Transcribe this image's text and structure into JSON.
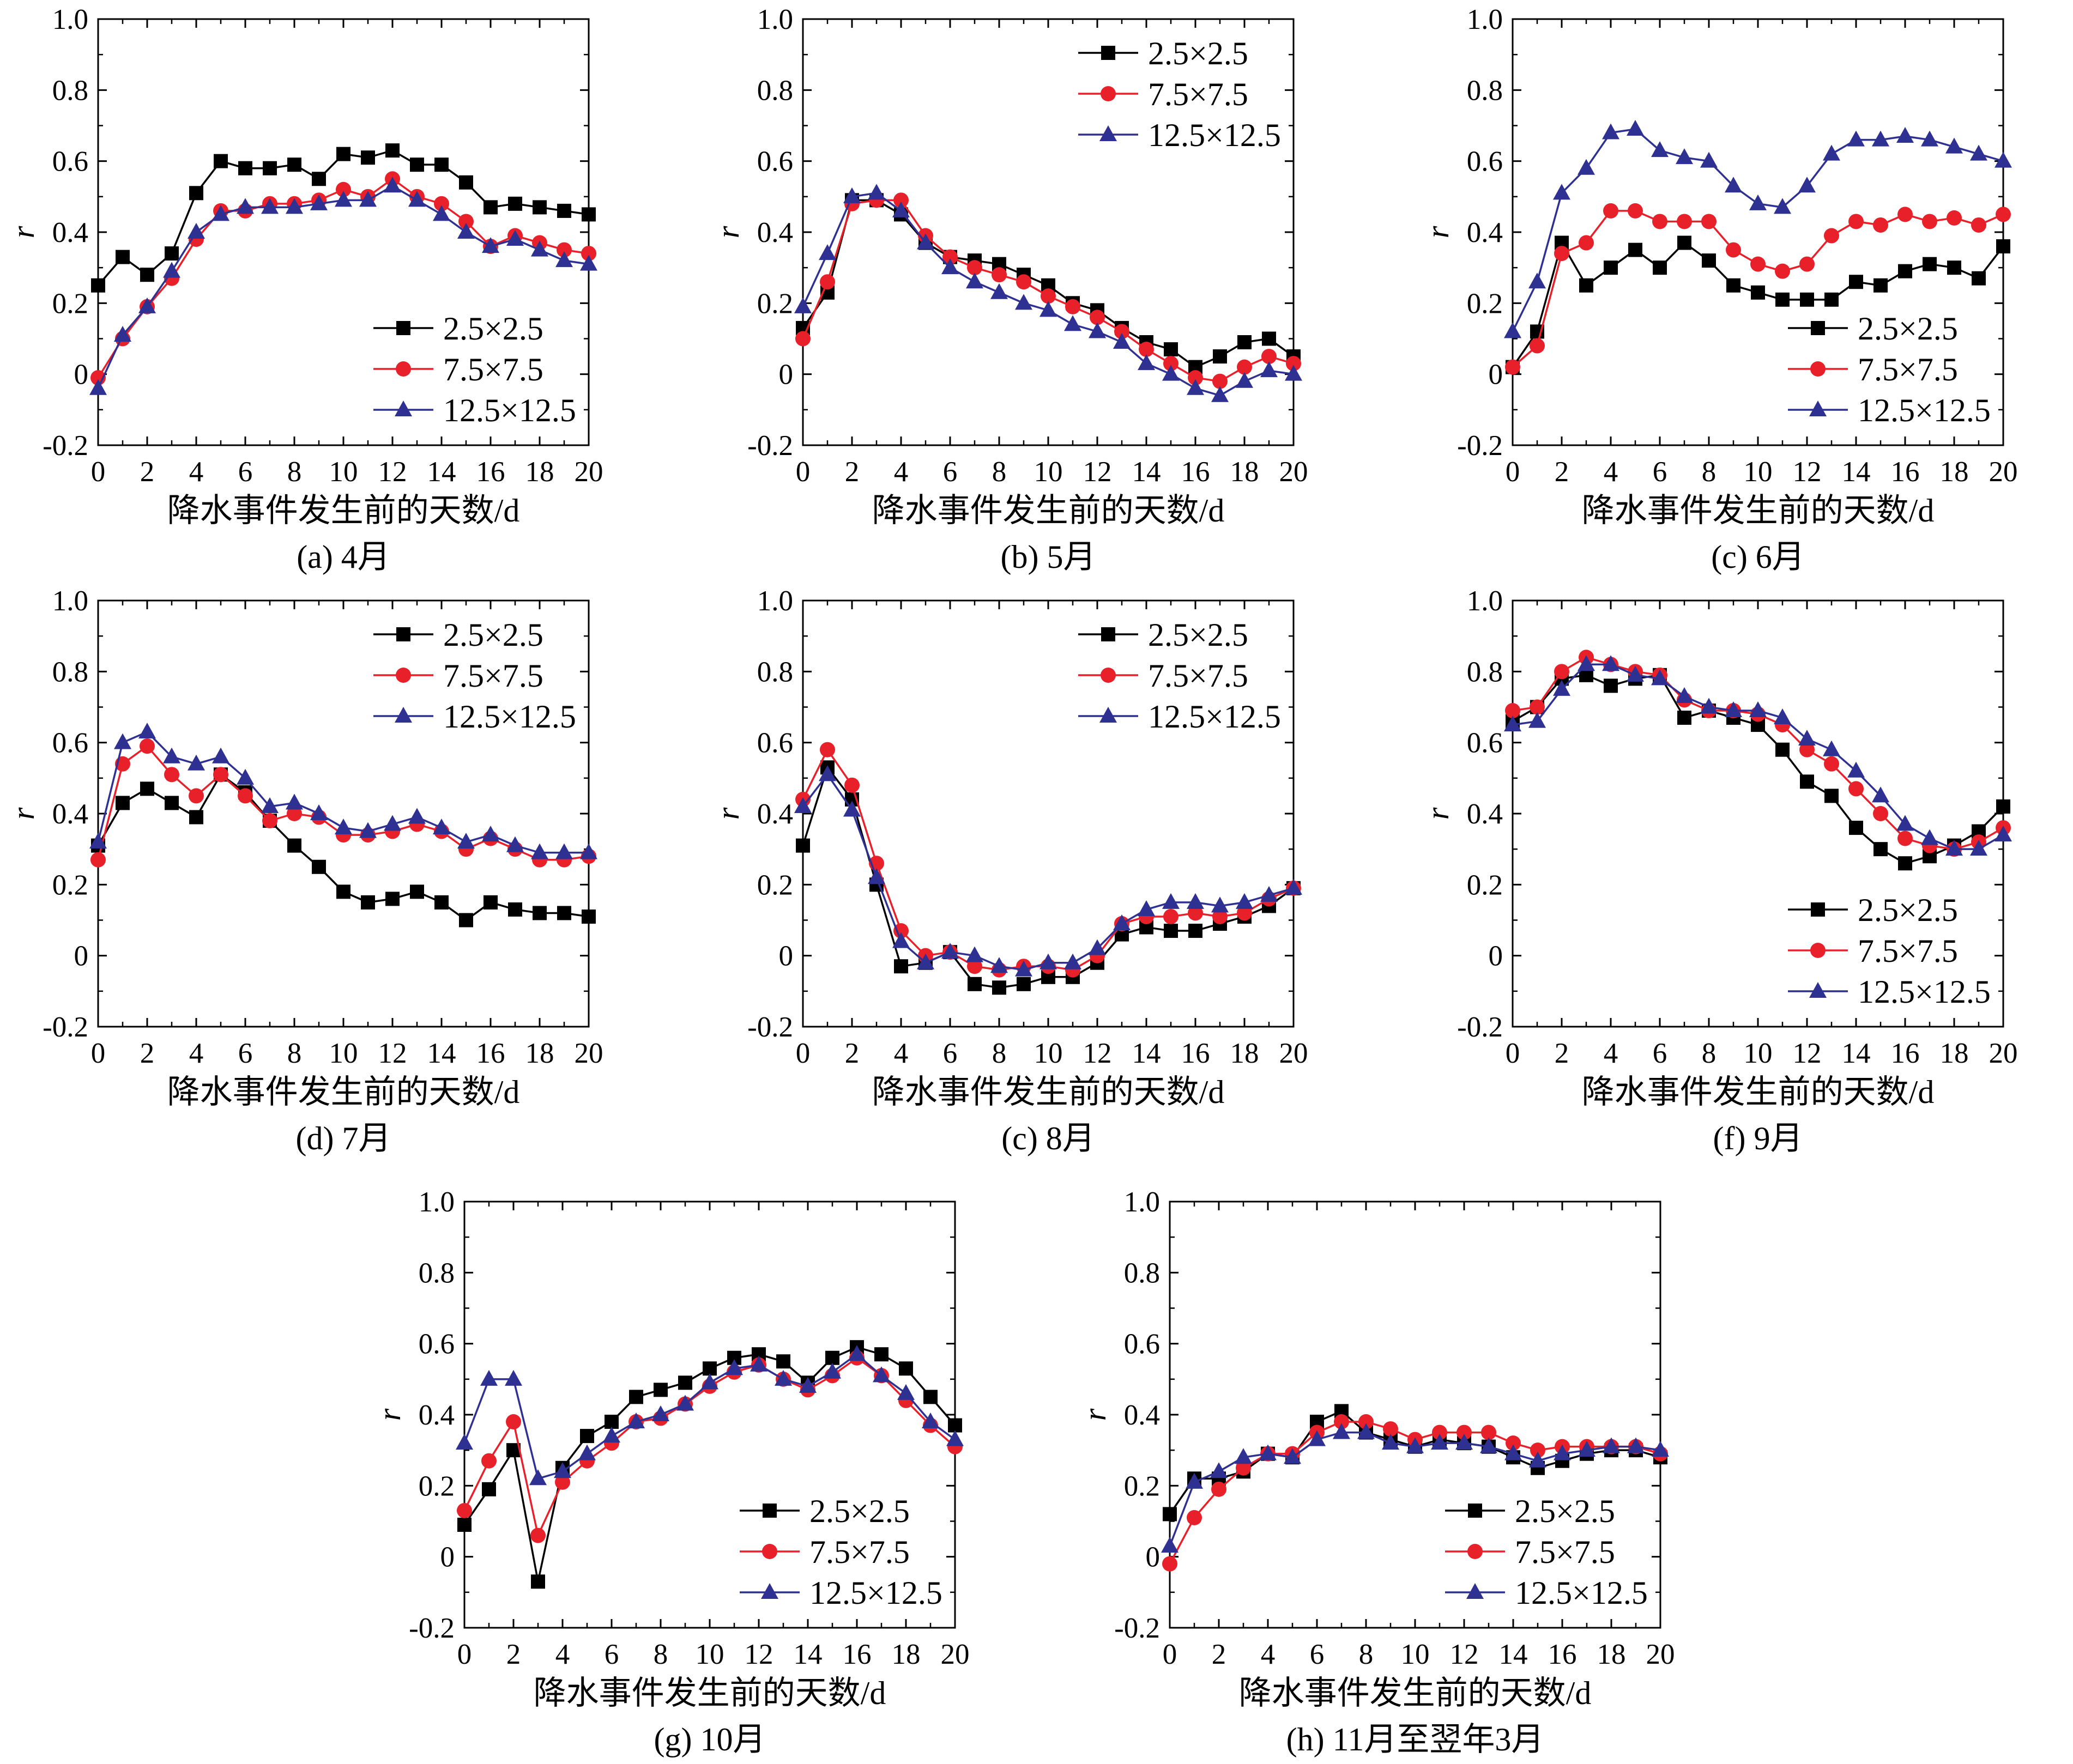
{
  "series_names": [
    "2.5×2.5",
    "7.5×7.5",
    "12.5×12.5"
  ],
  "colors": {
    "2.5×2.5": "#000000",
    "7.5×7.5": "#e8202a",
    "12.5×12.5": "#2e3192"
  },
  "markers": {
    "2.5×2.5": "square",
    "7.5×7.5": "circle",
    "12.5×12.5": "triangle"
  },
  "chart_data": [
    {
      "type": "line",
      "caption": "(a) 4月",
      "xlabel": "降水事件发生前的天数/d",
      "ylabel": "r",
      "xlim": [
        0,
        20
      ],
      "ylim": [
        -0.2,
        1.0
      ],
      "xticks": [
        0,
        2,
        4,
        6,
        8,
        10,
        12,
        14,
        16,
        18,
        20
      ],
      "yticks": [
        -0.2,
        0,
        0.2,
        0.4,
        0.6,
        0.8,
        1.0
      ],
      "ytick_labels": [
        "-0.2",
        "0",
        "0.2",
        "0.4",
        "0.6",
        "0.8",
        "1.0"
      ],
      "legend": "bottom-right",
      "x": [
        0,
        1,
        2,
        3,
        4,
        5,
        6,
        7,
        8,
        9,
        10,
        11,
        12,
        13,
        14,
        15,
        16,
        17,
        18,
        19,
        20
      ],
      "series": [
        {
          "name": "2.5×2.5",
          "values": [
            0.25,
            0.33,
            0.28,
            0.34,
            0.51,
            0.6,
            0.58,
            0.58,
            0.59,
            0.55,
            0.62,
            0.61,
            0.63,
            0.59,
            0.59,
            0.54,
            0.47,
            0.48,
            0.47,
            0.46,
            0.45
          ]
        },
        {
          "name": "7.5×7.5",
          "values": [
            -0.01,
            0.1,
            0.19,
            0.27,
            0.38,
            0.46,
            0.46,
            0.48,
            0.48,
            0.49,
            0.52,
            0.5,
            0.55,
            0.5,
            0.48,
            0.43,
            0.36,
            0.39,
            0.37,
            0.35,
            0.34
          ]
        },
        {
          "name": "12.5×12.5",
          "values": [
            -0.04,
            0.11,
            0.19,
            0.29,
            0.4,
            0.45,
            0.47,
            0.47,
            0.47,
            0.48,
            0.49,
            0.49,
            0.53,
            0.49,
            0.45,
            0.4,
            0.36,
            0.38,
            0.35,
            0.32,
            0.31
          ]
        }
      ]
    },
    {
      "type": "line",
      "caption": "(b) 5月",
      "xlabel": "降水事件发生前的天数/d",
      "ylabel": "r",
      "xlim": [
        0,
        20
      ],
      "ylim": [
        -0.2,
        1.0
      ],
      "xticks": [
        0,
        2,
        4,
        6,
        8,
        10,
        12,
        14,
        16,
        18,
        20
      ],
      "yticks": [
        -0.2,
        0,
        0.2,
        0.4,
        0.6,
        0.8,
        1.0
      ],
      "ytick_labels": [
        "-0.2",
        "0",
        "0.2",
        "0.4",
        "0.6",
        "0.8",
        "1.0"
      ],
      "legend": "top-right",
      "x": [
        0,
        1,
        2,
        3,
        4,
        5,
        6,
        7,
        8,
        9,
        10,
        11,
        12,
        13,
        14,
        15,
        16,
        17,
        18,
        19,
        20
      ],
      "series": [
        {
          "name": "2.5×2.5",
          "values": [
            0.13,
            0.23,
            0.49,
            0.49,
            0.45,
            0.37,
            0.33,
            0.32,
            0.31,
            0.28,
            0.25,
            0.2,
            0.18,
            0.13,
            0.09,
            0.07,
            0.02,
            0.05,
            0.09,
            0.1,
            0.05
          ]
        },
        {
          "name": "7.5×7.5",
          "values": [
            0.1,
            0.26,
            0.48,
            0.49,
            0.49,
            0.39,
            0.33,
            0.3,
            0.28,
            0.26,
            0.22,
            0.19,
            0.16,
            0.12,
            0.07,
            0.03,
            -0.01,
            -0.02,
            0.02,
            0.05,
            0.03
          ]
        },
        {
          "name": "12.5×12.5",
          "values": [
            0.19,
            0.34,
            0.5,
            0.51,
            0.46,
            0.37,
            0.3,
            0.26,
            0.23,
            0.2,
            0.18,
            0.14,
            0.12,
            0.09,
            0.03,
            0.0,
            -0.04,
            -0.06,
            -0.02,
            0.01,
            0.0
          ]
        }
      ]
    },
    {
      "type": "line",
      "caption": "(c) 6月",
      "xlabel": "降水事件发生前的天数/d",
      "ylabel": "r",
      "xlim": [
        0,
        20
      ],
      "ylim": [
        -0.2,
        1.0
      ],
      "xticks": [
        0,
        2,
        4,
        6,
        8,
        10,
        12,
        14,
        16,
        18,
        20
      ],
      "yticks": [
        -0.2,
        0,
        0.2,
        0.4,
        0.6,
        0.8,
        1.0
      ],
      "ytick_labels": [
        "-0.2",
        "0",
        "0.2",
        "0.4",
        "0.6",
        "0.8",
        "1.0"
      ],
      "legend": "bottom-right",
      "x": [
        0,
        1,
        2,
        3,
        4,
        5,
        6,
        7,
        8,
        9,
        10,
        11,
        12,
        13,
        14,
        15,
        16,
        17,
        18,
        19,
        20
      ],
      "series": [
        {
          "name": "2.5×2.5",
          "values": [
            0.02,
            0.12,
            0.37,
            0.25,
            0.3,
            0.35,
            0.3,
            0.37,
            0.32,
            0.25,
            0.23,
            0.21,
            0.21,
            0.21,
            0.26,
            0.25,
            0.29,
            0.31,
            0.3,
            0.27,
            0.36
          ]
        },
        {
          "name": "7.5×7.5",
          "values": [
            0.02,
            0.08,
            0.34,
            0.37,
            0.46,
            0.46,
            0.43,
            0.43,
            0.43,
            0.35,
            0.31,
            0.29,
            0.31,
            0.39,
            0.43,
            0.42,
            0.45,
            0.43,
            0.44,
            0.42,
            0.45
          ]
        },
        {
          "name": "12.5×12.5",
          "values": [
            0.12,
            0.26,
            0.51,
            0.58,
            0.68,
            0.69,
            0.63,
            0.61,
            0.6,
            0.53,
            0.48,
            0.47,
            0.53,
            0.62,
            0.66,
            0.66,
            0.67,
            0.66,
            0.64,
            0.62,
            0.6
          ]
        }
      ]
    },
    {
      "type": "line",
      "caption": "(d) 7月",
      "xlabel": "降水事件发生前的天数/d",
      "ylabel": "r",
      "xlim": [
        0,
        20
      ],
      "ylim": [
        -0.2,
        1.0
      ],
      "xticks": [
        0,
        2,
        4,
        6,
        8,
        10,
        12,
        14,
        16,
        18,
        20
      ],
      "yticks": [
        -0.2,
        0,
        0.2,
        0.4,
        0.6,
        0.8,
        1.0
      ],
      "ytick_labels": [
        "-0.2",
        "0",
        "0.2",
        "0.4",
        "0.6",
        "0.8",
        "1.0"
      ],
      "legend": "top-right",
      "x": [
        0,
        1,
        2,
        3,
        4,
        5,
        6,
        7,
        8,
        9,
        10,
        11,
        12,
        13,
        14,
        15,
        16,
        17,
        18,
        19,
        20
      ],
      "series": [
        {
          "name": "2.5×2.5",
          "values": [
            0.31,
            0.43,
            0.47,
            0.43,
            0.39,
            0.51,
            0.46,
            0.38,
            0.31,
            0.25,
            0.18,
            0.15,
            0.16,
            0.18,
            0.15,
            0.1,
            0.15,
            0.13,
            0.12,
            0.12,
            0.11
          ]
        },
        {
          "name": "7.5×7.5",
          "values": [
            0.27,
            0.54,
            0.59,
            0.51,
            0.45,
            0.51,
            0.45,
            0.38,
            0.4,
            0.39,
            0.34,
            0.34,
            0.35,
            0.37,
            0.35,
            0.3,
            0.33,
            0.3,
            0.27,
            0.27,
            0.28
          ]
        },
        {
          "name": "12.5×12.5",
          "values": [
            0.32,
            0.6,
            0.63,
            0.56,
            0.54,
            0.56,
            0.5,
            0.42,
            0.43,
            0.4,
            0.36,
            0.35,
            0.37,
            0.39,
            0.36,
            0.32,
            0.34,
            0.31,
            0.29,
            0.29,
            0.29
          ]
        }
      ]
    },
    {
      "type": "line",
      "caption": "(c) 8月",
      "xlabel": "降水事件发生前的天数/d",
      "ylabel": "r",
      "xlim": [
        0,
        20
      ],
      "ylim": [
        -0.2,
        1.0
      ],
      "xticks": [
        0,
        2,
        4,
        6,
        8,
        10,
        12,
        14,
        16,
        18,
        20
      ],
      "yticks": [
        -0.2,
        0,
        0.2,
        0.4,
        0.6,
        0.8,
        1.0
      ],
      "ytick_labels": [
        "-0.2",
        "0",
        "0.2",
        "0.4",
        "0.6",
        "0.8",
        "1.0"
      ],
      "legend": "top-right",
      "x": [
        0,
        1,
        2,
        3,
        4,
        5,
        6,
        7,
        8,
        9,
        10,
        11,
        12,
        13,
        14,
        15,
        16,
        17,
        18,
        19,
        20
      ],
      "series": [
        {
          "name": "2.5×2.5",
          "values": [
            0.31,
            0.53,
            0.44,
            0.2,
            -0.03,
            -0.02,
            0.01,
            -0.08,
            -0.09,
            -0.08,
            -0.06,
            -0.06,
            -0.02,
            0.06,
            0.08,
            0.07,
            0.07,
            0.09,
            0.11,
            0.14,
            0.19
          ]
        },
        {
          "name": "7.5×7.5",
          "values": [
            0.44,
            0.58,
            0.48,
            0.26,
            0.07,
            0.0,
            0.01,
            -0.03,
            -0.04,
            -0.03,
            -0.03,
            -0.04,
            0.0,
            0.09,
            0.11,
            0.11,
            0.12,
            0.11,
            0.12,
            0.16,
            0.19
          ]
        },
        {
          "name": "12.5×12.5",
          "values": [
            0.42,
            0.51,
            0.41,
            0.22,
            0.04,
            -0.02,
            0.01,
            0.0,
            -0.03,
            -0.04,
            -0.02,
            -0.02,
            0.02,
            0.09,
            0.13,
            0.15,
            0.15,
            0.14,
            0.15,
            0.17,
            0.19
          ]
        }
      ]
    },
    {
      "type": "line",
      "caption": "(f) 9月",
      "xlabel": "降水事件发生前的天数/d",
      "ylabel": "r",
      "xlim": [
        0,
        20
      ],
      "ylim": [
        -0.2,
        1.0
      ],
      "xticks": [
        0,
        2,
        4,
        6,
        8,
        10,
        12,
        14,
        16,
        18,
        20
      ],
      "yticks": [
        -0.2,
        0,
        0.2,
        0.4,
        0.6,
        0.8,
        1.0
      ],
      "ytick_labels": [
        "-0.2",
        "0",
        "0.2",
        "0.4",
        "0.6",
        "0.8",
        "1.0"
      ],
      "legend": "bottom-right",
      "x": [
        0,
        1,
        2,
        3,
        4,
        5,
        6,
        7,
        8,
        9,
        10,
        11,
        12,
        13,
        14,
        15,
        16,
        17,
        18,
        19,
        20
      ],
      "series": [
        {
          "name": "2.5×2.5",
          "values": [
            0.66,
            0.7,
            0.78,
            0.79,
            0.76,
            0.78,
            0.79,
            0.67,
            0.69,
            0.67,
            0.65,
            0.58,
            0.49,
            0.45,
            0.36,
            0.3,
            0.26,
            0.28,
            0.31,
            0.35,
            0.42
          ]
        },
        {
          "name": "7.5×7.5",
          "values": [
            0.69,
            0.7,
            0.8,
            0.84,
            0.82,
            0.8,
            0.79,
            0.72,
            0.69,
            0.69,
            0.68,
            0.65,
            0.58,
            0.54,
            0.47,
            0.4,
            0.33,
            0.31,
            0.3,
            0.32,
            0.36
          ]
        },
        {
          "name": "12.5×12.5",
          "values": [
            0.65,
            0.66,
            0.75,
            0.82,
            0.82,
            0.79,
            0.78,
            0.73,
            0.7,
            0.69,
            0.69,
            0.67,
            0.61,
            0.58,
            0.52,
            0.45,
            0.37,
            0.33,
            0.3,
            0.3,
            0.34
          ]
        }
      ]
    },
    {
      "type": "line",
      "caption": "(g) 10月",
      "xlabel": "降水事件发生前的天数/d",
      "ylabel": "r",
      "xlim": [
        0,
        20
      ],
      "ylim": [
        -0.2,
        1.0
      ],
      "xticks": [
        0,
        2,
        4,
        6,
        8,
        10,
        12,
        14,
        16,
        18,
        20
      ],
      "yticks": [
        -0.2,
        0,
        0.2,
        0.4,
        0.6,
        0.8,
        1.0
      ],
      "ytick_labels": [
        "-0.2",
        "0",
        "0.2",
        "0.4",
        "0.6",
        "0.8",
        "1.0"
      ],
      "legend": "bottom-right",
      "x": [
        0,
        1,
        2,
        3,
        4,
        5,
        6,
        7,
        8,
        9,
        10,
        11,
        12,
        13,
        14,
        15,
        16,
        17,
        18,
        19,
        20
      ],
      "series": [
        {
          "name": "2.5×2.5",
          "values": [
            0.09,
            0.19,
            0.3,
            -0.07,
            0.25,
            0.34,
            0.38,
            0.45,
            0.47,
            0.49,
            0.53,
            0.56,
            0.57,
            0.55,
            0.49,
            0.56,
            0.59,
            0.57,
            0.53,
            0.45,
            0.37
          ]
        },
        {
          "name": "7.5×7.5",
          "values": [
            0.13,
            0.27,
            0.38,
            0.06,
            0.21,
            0.27,
            0.32,
            0.38,
            0.39,
            0.43,
            0.48,
            0.52,
            0.54,
            0.5,
            0.47,
            0.51,
            0.56,
            0.51,
            0.44,
            0.37,
            0.31
          ]
        },
        {
          "name": "12.5×12.5",
          "values": [
            0.32,
            0.5,
            0.5,
            0.22,
            0.24,
            0.29,
            0.34,
            0.38,
            0.4,
            0.43,
            0.49,
            0.53,
            0.54,
            0.5,
            0.48,
            0.52,
            0.57,
            0.51,
            0.46,
            0.38,
            0.33
          ]
        }
      ]
    },
    {
      "type": "line",
      "caption": "(h) 11月至翌年3月",
      "xlabel": "降水事件发生前的天数/d",
      "ylabel": "r",
      "xlim": [
        0,
        20
      ],
      "ylim": [
        -0.2,
        1.0
      ],
      "xticks": [
        0,
        2,
        4,
        6,
        8,
        10,
        12,
        14,
        16,
        18,
        20
      ],
      "yticks": [
        -0.2,
        0,
        0.2,
        0.4,
        0.6,
        0.8,
        1.0
      ],
      "ytick_labels": [
        "-0.2",
        "0",
        "0.2",
        "0.4",
        "0.6",
        "0.8",
        "1.0"
      ],
      "legend": "bottom-right",
      "x": [
        0,
        1,
        2,
        3,
        4,
        5,
        6,
        7,
        8,
        9,
        10,
        11,
        12,
        13,
        14,
        15,
        16,
        17,
        18,
        19,
        20
      ],
      "series": [
        {
          "name": "2.5×2.5",
          "values": [
            0.12,
            0.22,
            0.22,
            0.24,
            0.29,
            0.28,
            0.38,
            0.41,
            0.35,
            0.33,
            0.31,
            0.33,
            0.32,
            0.31,
            0.28,
            0.25,
            0.27,
            0.29,
            0.3,
            0.3,
            0.28
          ]
        },
        {
          "name": "7.5×7.5",
          "values": [
            -0.02,
            0.11,
            0.19,
            0.25,
            0.29,
            0.29,
            0.35,
            0.38,
            0.38,
            0.36,
            0.33,
            0.35,
            0.35,
            0.35,
            0.32,
            0.3,
            0.31,
            0.31,
            0.31,
            0.31,
            0.29
          ]
        },
        {
          "name": "12.5×12.5",
          "values": [
            0.03,
            0.21,
            0.24,
            0.28,
            0.29,
            0.28,
            0.33,
            0.35,
            0.35,
            0.32,
            0.31,
            0.32,
            0.32,
            0.31,
            0.29,
            0.27,
            0.29,
            0.3,
            0.31,
            0.31,
            0.3
          ]
        }
      ]
    }
  ]
}
